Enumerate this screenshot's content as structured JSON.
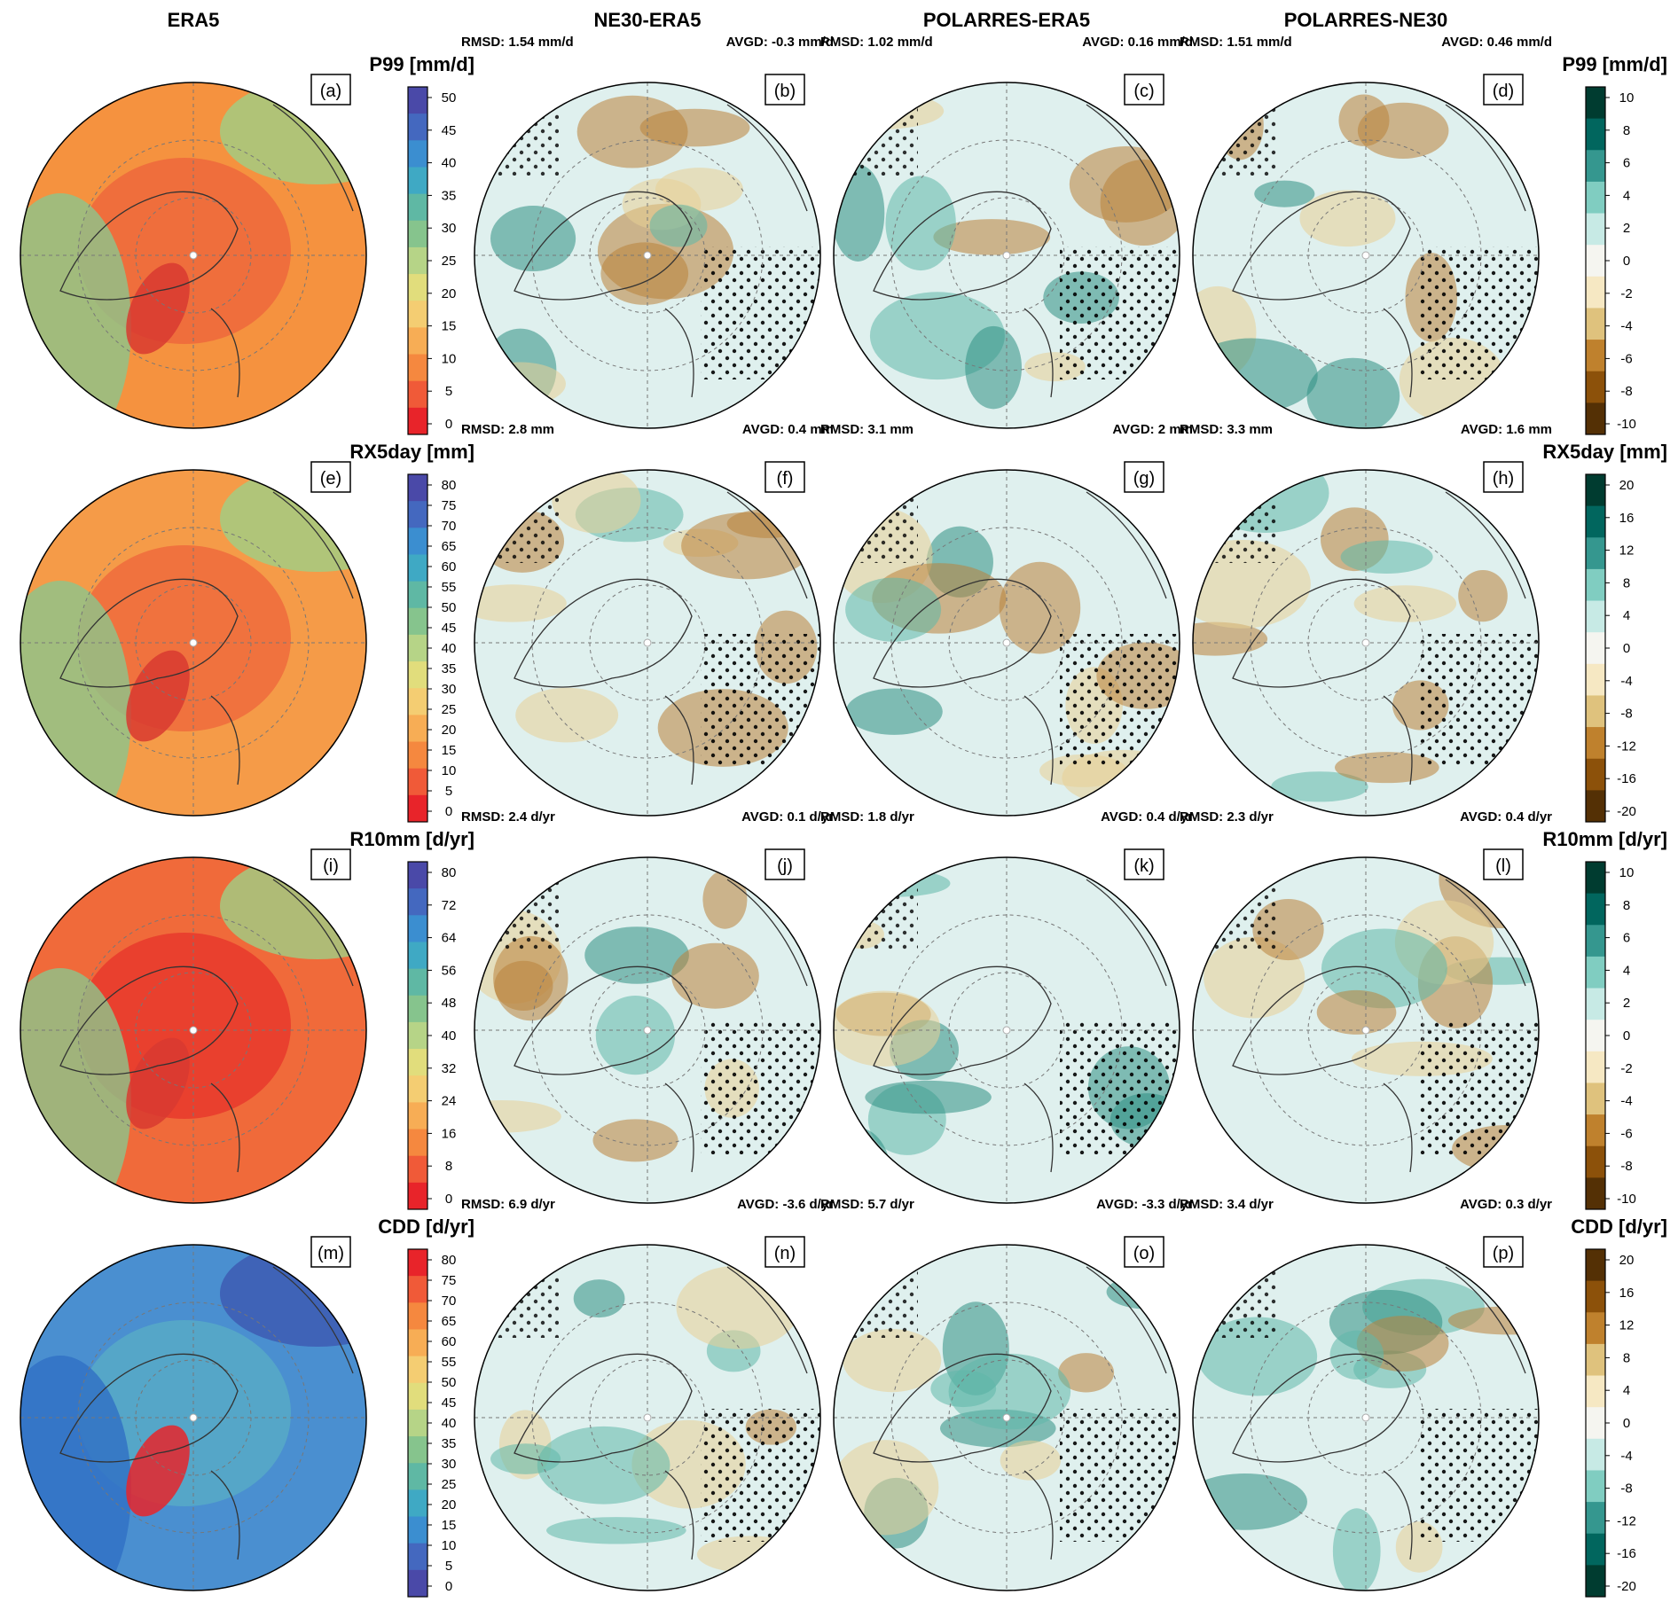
{
  "columns": [
    "ERA5",
    "NE30-ERA5",
    "POLARRES-ERA5",
    "POLARRES-NE30"
  ],
  "rows": [
    {
      "variable": "P99 [mm/d]",
      "panels": [
        "(a)",
        "(b)",
        "(c)",
        "(d)"
      ],
      "stats": [
        {
          "rmsd": "RMSD: 1.54 mm/d",
          "avgd": "AVGD: -0.3 mm/d"
        },
        {
          "rmsd": "RMSD: 1.02 mm/d",
          "avgd": "AVGD: 0.16 mm/d"
        },
        {
          "rmsd": "RMSD: 1.51 mm/d",
          "avgd": "AVGD: 0.46 mm/d"
        }
      ],
      "abs_colorbar": {
        "ticks": [
          "50",
          "45",
          "40",
          "35",
          "30",
          "25",
          "20",
          "15",
          "10",
          "5",
          "0"
        ],
        "palette": "spectral"
      },
      "diff_colorbar": {
        "ticks": [
          "10",
          "8",
          "6",
          "4",
          "2",
          "0",
          "-2",
          "-4",
          "-6",
          "-8",
          "-10"
        ],
        "palette": "wet-teal"
      }
    },
    {
      "variable": "RX5day [mm]",
      "panels": [
        "(e)",
        "(f)",
        "(g)",
        "(h)"
      ],
      "stats": [
        {
          "rmsd": "RMSD: 2.8 mm",
          "avgd": "AVGD: 0.4 mm"
        },
        {
          "rmsd": "RMSD: 3.1 mm",
          "avgd": "AVGD: 2 mm"
        },
        {
          "rmsd": "RMSD: 3.3 mm",
          "avgd": "AVGD: 1.6 mm"
        }
      ],
      "abs_colorbar": {
        "ticks": [
          "80",
          "75",
          "70",
          "65",
          "60",
          "55",
          "50",
          "45",
          "40",
          "35",
          "30",
          "25",
          "20",
          "15",
          "10",
          "5",
          "0"
        ],
        "palette": "spectral"
      },
      "diff_colorbar": {
        "ticks": [
          "20",
          "16",
          "12",
          "8",
          "4",
          "0",
          "-4",
          "-8",
          "-12",
          "-16",
          "-20"
        ],
        "palette": "wet-teal"
      }
    },
    {
      "variable": "R10mm [d/yr]",
      "panels": [
        "(i)",
        "(j)",
        "(k)",
        "(l)"
      ],
      "stats": [
        {
          "rmsd": "RMSD: 2.4 d/yr",
          "avgd": "AVGD: 0.1 d/yr"
        },
        {
          "rmsd": "RMSD: 1.8 d/yr",
          "avgd": "AVGD: 0.4 d/yr"
        },
        {
          "rmsd": "RMSD: 2.3 d/yr",
          "avgd": "AVGD: 0.4 d/yr"
        }
      ],
      "abs_colorbar": {
        "ticks": [
          "80",
          "72",
          "64",
          "56",
          "48",
          "40",
          "32",
          "24",
          "16",
          "8",
          "0"
        ],
        "palette": "spectral"
      },
      "diff_colorbar": {
        "ticks": [
          "10",
          "8",
          "6",
          "4",
          "2",
          "0",
          "-2",
          "-4",
          "-6",
          "-8",
          "-10"
        ],
        "palette": "wet-teal"
      }
    },
    {
      "variable": "CDD [d/yr]",
      "panels": [
        "(m)",
        "(n)",
        "(o)",
        "(p)"
      ],
      "stats": [
        {
          "rmsd": "RMSD: 6.9 d/yr",
          "avgd": "AVGD: -3.6 d/yr"
        },
        {
          "rmsd": "RMSD: 5.7 d/yr",
          "avgd": "AVGD: -3.3 d/yr"
        },
        {
          "rmsd": "RMSD: 3.4 d/yr",
          "avgd": "AVGD: 0.3 d/yr"
        }
      ],
      "abs_colorbar": {
        "ticks": [
          "80",
          "75",
          "70",
          "65",
          "60",
          "55",
          "50",
          "45",
          "40",
          "35",
          "30",
          "25",
          "20",
          "15",
          "10",
          "5",
          "0"
        ],
        "palette": "spectral-reversed"
      },
      "diff_colorbar": {
        "ticks": [
          "20",
          "16",
          "12",
          "8",
          "4",
          "0",
          "-4",
          "-8",
          "-12",
          "-16",
          "-20"
        ],
        "palette": "dry-brown"
      }
    }
  ],
  "colors": {
    "spectral": [
      "#e8242a",
      "#f05a38",
      "#f5883f",
      "#f7ad55",
      "#f4cd72",
      "#e1dd7c",
      "#b6d487",
      "#86c48d",
      "#5fb8a4",
      "#3fa9c4",
      "#3b8ed0",
      "#4468bf",
      "#4a49a8"
    ],
    "diverging": [
      "#003c30",
      "#01665e",
      "#35978f",
      "#80cdc1",
      "#c7eae5",
      "#f5f5f0",
      "#f6e8c3",
      "#dfc27d",
      "#bf812d",
      "#8c510a",
      "#543005"
    ],
    "frame": "#000000",
    "coast": "#333333",
    "grid": "#777777"
  }
}
